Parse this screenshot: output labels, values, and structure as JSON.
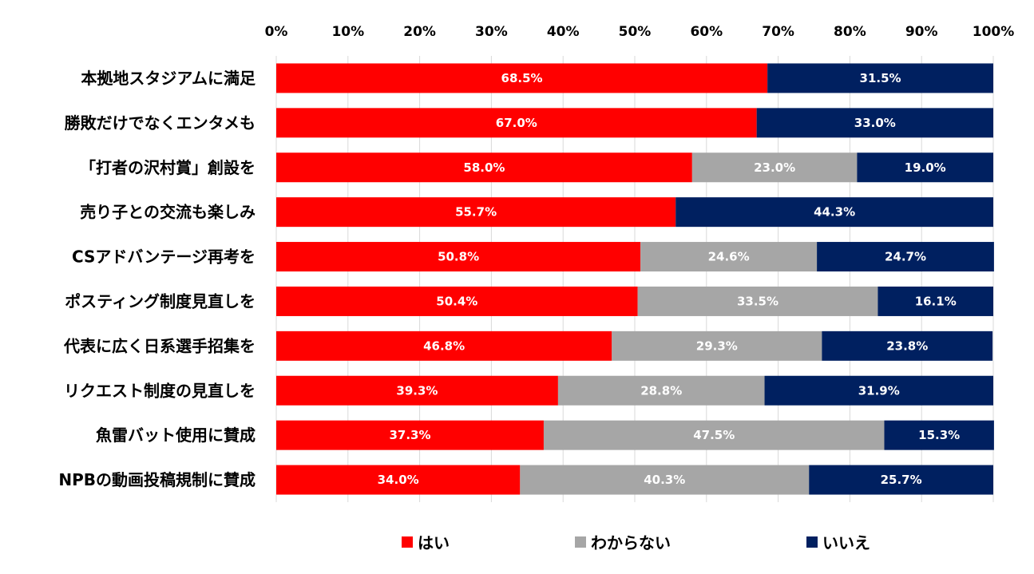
{
  "chart_data": {
    "type": "bar",
    "orientation": "horizontal",
    "stacked": "percent",
    "title": "",
    "xlabel": "",
    "ylabel": "",
    "xlim": [
      0,
      100
    ],
    "x_ticks": [
      "0%",
      "10%",
      "20%",
      "30%",
      "40%",
      "50%",
      "60%",
      "70%",
      "80%",
      "90%",
      "100%"
    ],
    "grid": true,
    "legend_position": "bottom",
    "categories": [
      "本拠地スタジアムに満足",
      "勝敗だけでなくエンタメも",
      "「打者の沢村賞」創設を",
      "売り子との交流も楽しみ",
      "CSアドバンテージ再考を",
      "ポスティング制度見直しを",
      "代表に広く日系選手招集を",
      "リクエスト制度の見直しを",
      "魚雷バット使用に賛成",
      "NPBの動画投稿規制に賛成"
    ],
    "series": [
      {
        "name": "はい",
        "color": "#ff0000",
        "values": [
          68.5,
          67.0,
          58.0,
          55.7,
          50.8,
          50.4,
          46.8,
          39.3,
          37.3,
          34.0
        ],
        "labels": [
          "68.5%",
          "67.0%",
          "58.0%",
          "55.7%",
          "50.8%",
          "50.4%",
          "46.8%",
          "39.3%",
          "37.3%",
          "34.0%"
        ]
      },
      {
        "name": "わからない",
        "color": "#a6a6a6",
        "values": [
          0,
          0,
          23.0,
          0,
          24.6,
          33.5,
          29.3,
          28.8,
          47.5,
          40.3
        ],
        "labels": [
          "",
          "",
          "23.0%",
          "",
          "24.6%",
          "33.5%",
          "29.3%",
          "28.8%",
          "47.5%",
          "40.3%"
        ]
      },
      {
        "name": "いいえ",
        "color": "#002060",
        "values": [
          31.5,
          33.0,
          19.0,
          44.3,
          24.7,
          16.1,
          23.8,
          31.9,
          15.3,
          25.7
        ],
        "labels": [
          "31.5%",
          "33.0%",
          "19.0%",
          "44.3%",
          "24.7%",
          "16.1%",
          "23.8%",
          "31.9%",
          "15.3%",
          "25.7%"
        ]
      }
    ]
  }
}
